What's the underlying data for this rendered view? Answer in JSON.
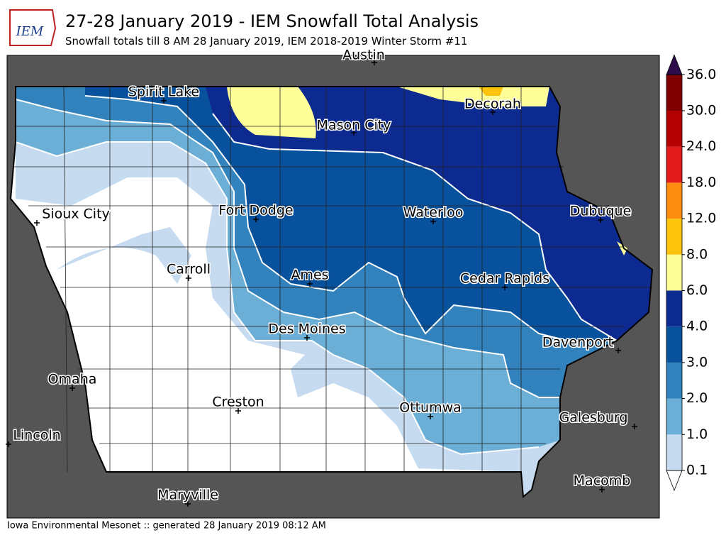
{
  "header": {
    "logo": "IEM",
    "title": "27-28 January 2019 - IEM Snowfall Total Analysis",
    "subtitle": "Snowfall totals till 8 AM 28 January 2019, IEM 2018-2019 Winter Storm #11"
  },
  "cities": [
    "Austin",
    "Spirit Lake",
    "Decorah",
    "Mason City",
    "Sioux City",
    "Fort Dodge",
    "Waterloo",
    "Dubuque",
    "Carroll",
    "Ames",
    "Cedar Rapids",
    "Des Moines",
    "Davenport",
    "Omaha",
    "Creston",
    "Ottumwa",
    "Galesburg",
    "Lincoln",
    "Macomb",
    "Maryville"
  ],
  "colorbar": {
    "levels": [
      {
        "value": 0.1,
        "label": "0.1"
      },
      {
        "value": 1,
        "label": "1.0"
      },
      {
        "value": 2,
        "label": "2.0"
      },
      {
        "value": 3,
        "label": "3.0"
      },
      {
        "value": 4,
        "label": "4.0"
      },
      {
        "value": 6,
        "label": "6.0"
      },
      {
        "value": 8,
        "label": "8.0"
      },
      {
        "value": 12,
        "label": "12.0"
      },
      {
        "value": 18,
        "label": "18.0"
      },
      {
        "value": 24,
        "label": "24.0"
      },
      {
        "value": 30,
        "label": "30.0"
      },
      {
        "value": 36,
        "label": "36.0"
      }
    ],
    "colors": [
      "#c6dbef",
      "#6baed6",
      "#3182bd",
      "#08519c",
      "#0c2a8f",
      "#ffff99",
      "#fec30d",
      "#fd8d10",
      "#e31a1c",
      "#b30000",
      "#800000"
    ],
    "over_color": "#2d0a4a",
    "under_color": "#ffffff"
  },
  "footer": "Iowa Environmental Mesonet :: generated 28 January 2019 08:12 AM"
}
